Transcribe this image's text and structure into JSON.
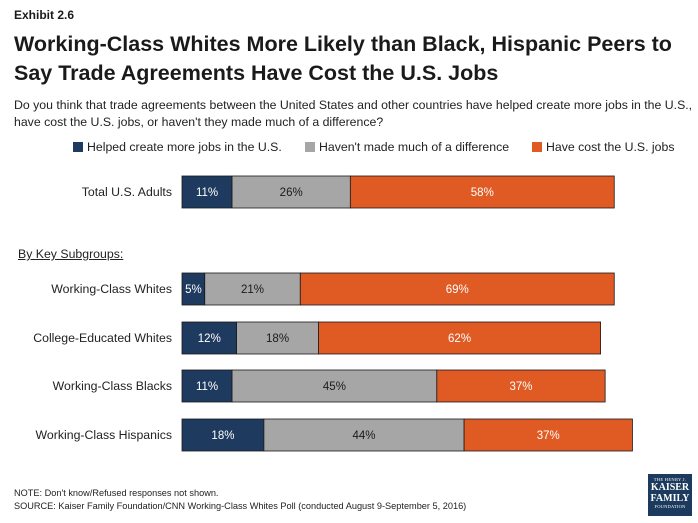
{
  "exhibit_label": "Exhibit 2.6",
  "title_line1": "Working-Class Whites More Likely than Black, Hispanic Peers to",
  "title_line2": "Say Trade Agreements Have Cost the U.S. Jobs",
  "question": "Do you think that trade agreements between the United States and other countries have helped create more jobs in the U.S., have cost the U.S. jobs, or haven't they made much of a difference?",
  "subgroups_heading": "By Key Subgroups:",
  "footnote_line1": "NOTE: Don't know/Refused responses not shown.",
  "footnote_line2": "SOURCE: Kaiser Family Foundation/CNN Working-Class Whites Poll (conducted August 9-September 5, 2016)",
  "logo": {
    "line1": "THE HENRY J.",
    "line2a": "KAISER",
    "line2b": "FAMILY",
    "line3": "FOUNDATION"
  },
  "colors": {
    "helped": "#1f3a5f",
    "no_difference": "#a6a6a6",
    "cost": "#e05a24"
  },
  "chart_data": {
    "type": "bar",
    "orientation": "horizontal",
    "stacked": true,
    "categories": [
      "Total U.S. Adults",
      "Working-Class Whites",
      "College-Educated Whites",
      "Working-Class Blacks",
      "Working-Class Hispanics"
    ],
    "series": [
      {
        "name": "Helped create more jobs in the U.S.",
        "values": [
          11,
          5,
          12,
          11,
          18
        ],
        "labels": [
          "11%",
          "5%",
          "12%",
          "11%",
          "18%"
        ]
      },
      {
        "name": "Haven't made much of a difference",
        "values": [
          26,
          21,
          18,
          45,
          44
        ],
        "labels": [
          "26%",
          "21%",
          "18%",
          "45%",
          "44%"
        ]
      },
      {
        "name": "Have cost the U.S. jobs",
        "values": [
          58,
          69,
          62,
          37,
          37
        ],
        "labels": [
          "58%",
          "69%",
          "62%",
          "37%",
          "37%"
        ]
      }
    ],
    "xlim": [
      0,
      100
    ],
    "grid": false,
    "legend_position": "top"
  }
}
